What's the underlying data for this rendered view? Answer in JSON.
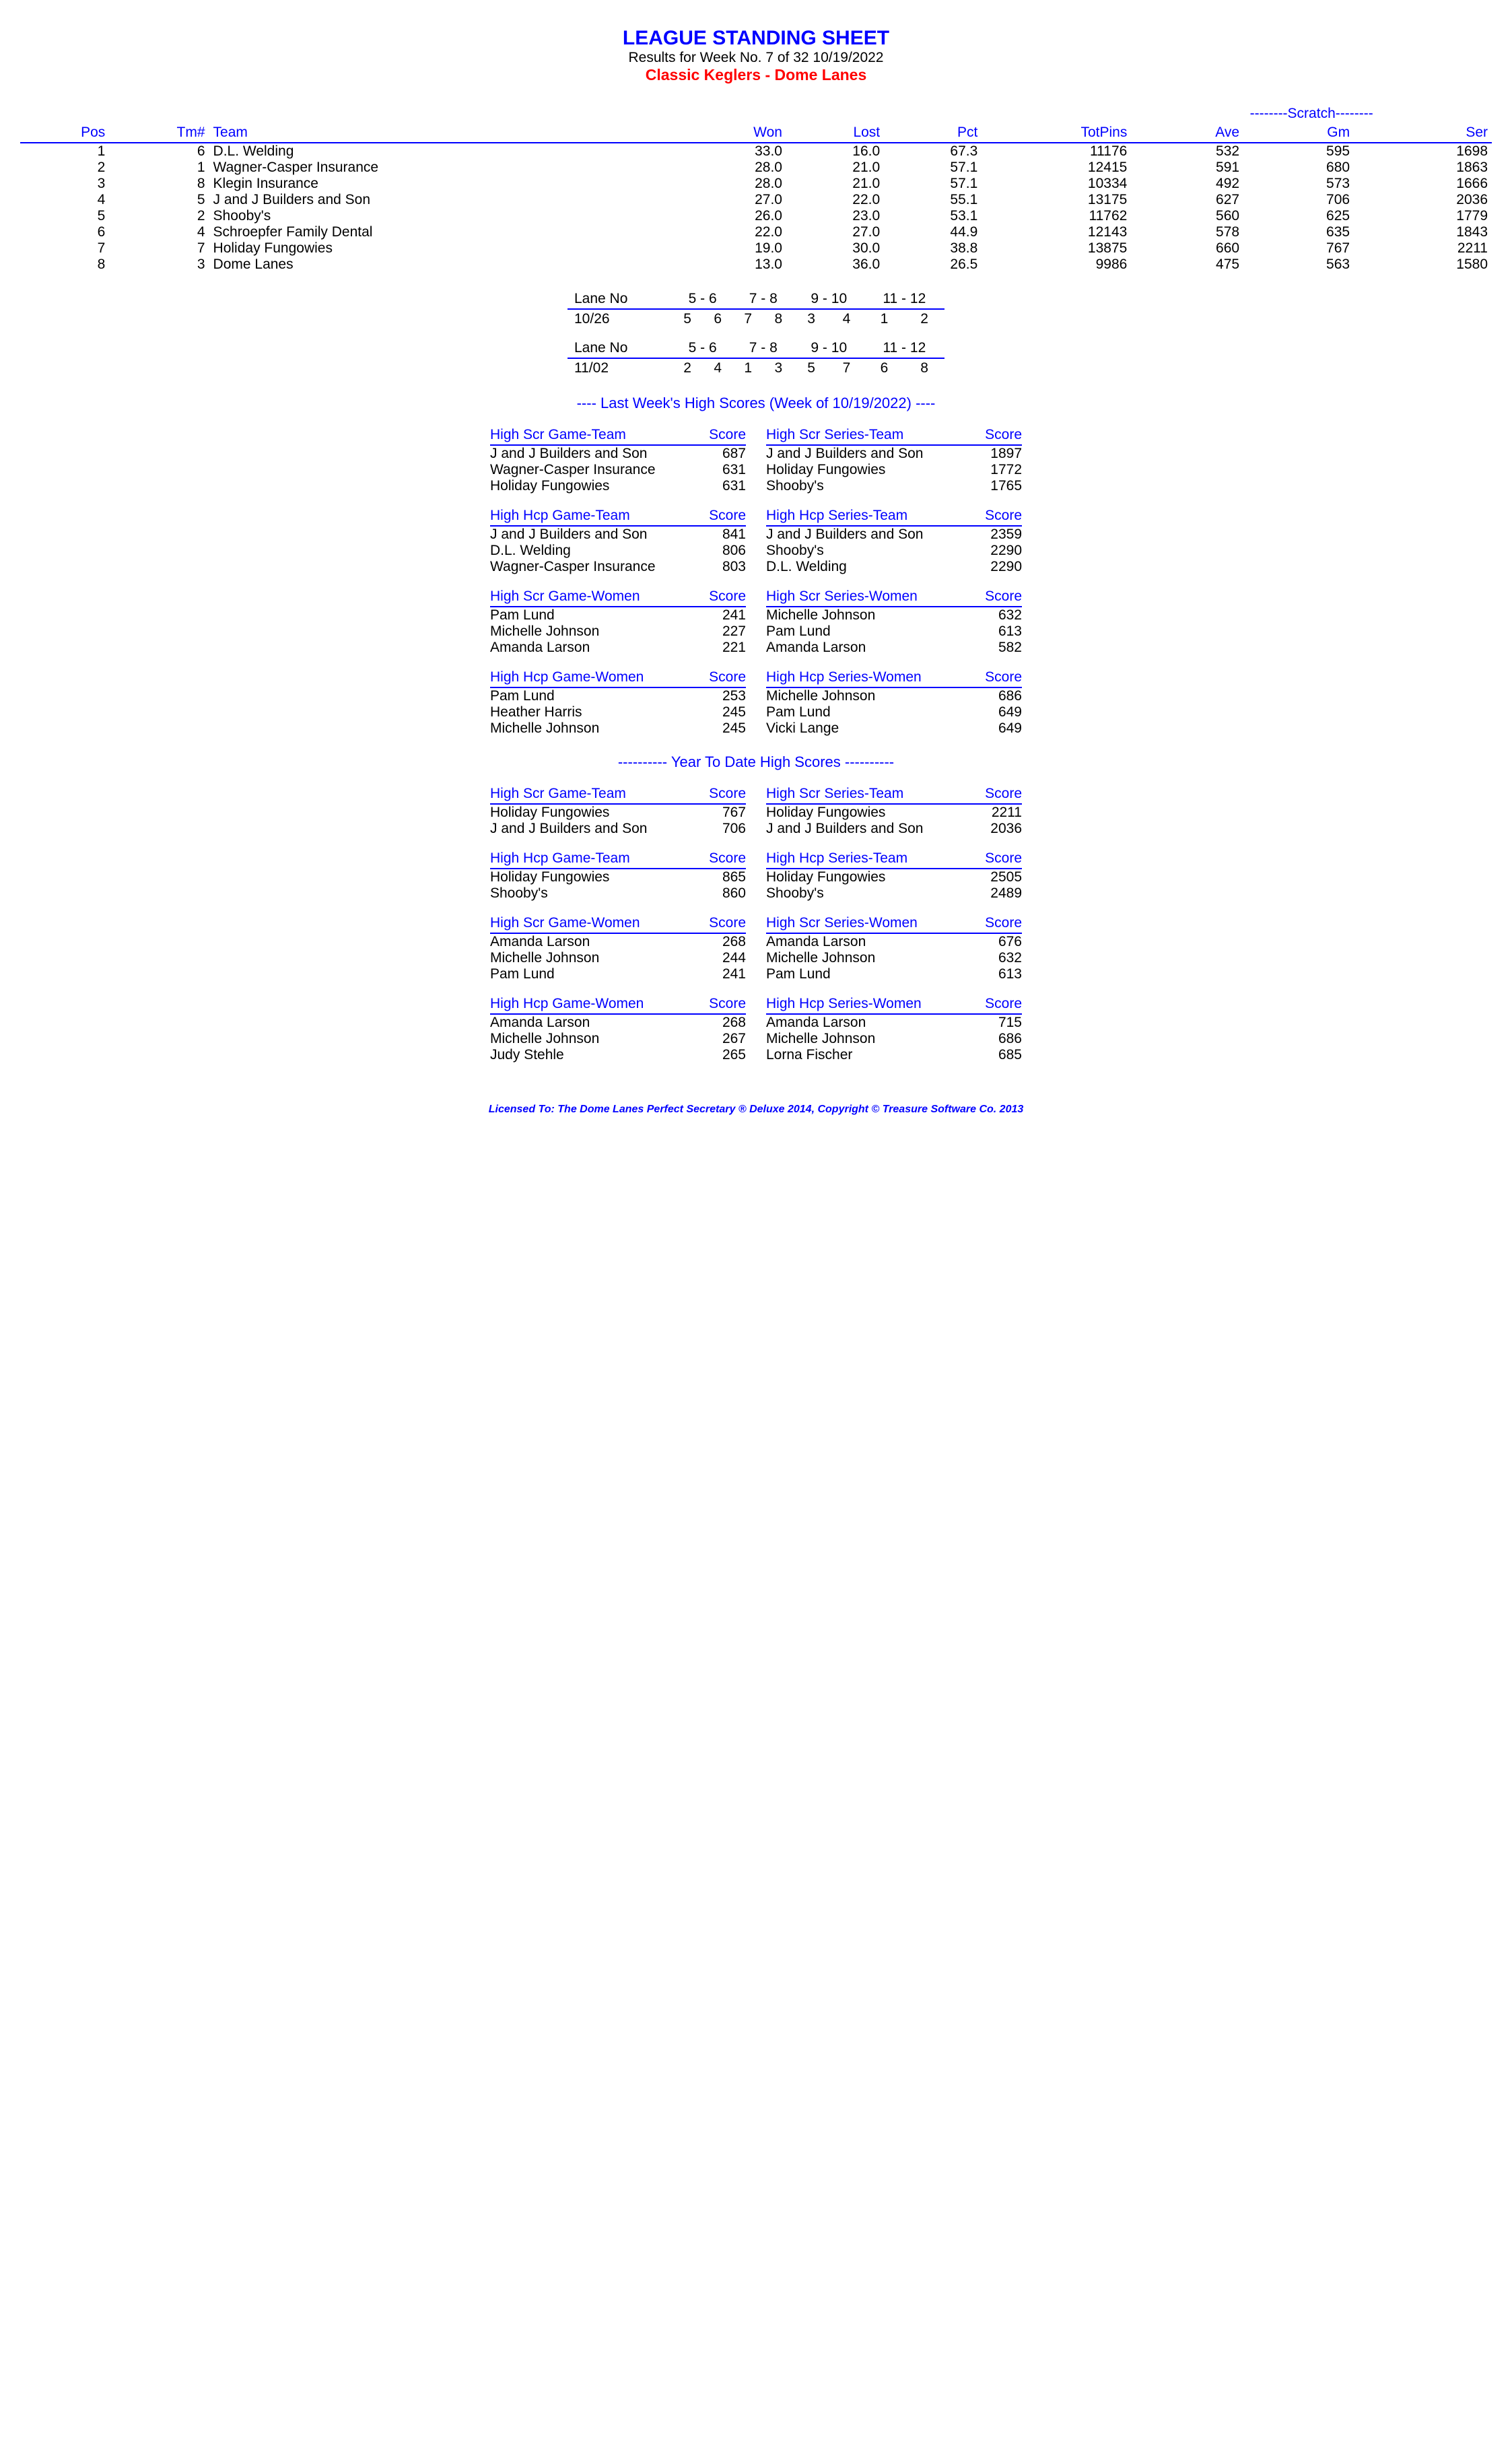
{
  "header": {
    "title": "LEAGUE STANDING SHEET",
    "subtitle": "Results for Week No. 7 of 32    10/19/2022",
    "league": "Classic Keglers - Dome Lanes"
  },
  "standings": {
    "scratch_label": "--------Scratch--------",
    "columns": [
      "Pos",
      "Tm#",
      "Team",
      "Won",
      "Lost",
      "Pct",
      "TotPins",
      "Ave",
      "Gm",
      "Ser"
    ],
    "rows": [
      [
        "1",
        "6",
        "D.L. Welding",
        "33.0",
        "16.0",
        "67.3",
        "11176",
        "532",
        "595",
        "1698"
      ],
      [
        "2",
        "1",
        "Wagner-Casper Insurance",
        "28.0",
        "21.0",
        "57.1",
        "12415",
        "591",
        "680",
        "1863"
      ],
      [
        "3",
        "8",
        "Klegin Insurance",
        "28.0",
        "21.0",
        "57.1",
        "10334",
        "492",
        "573",
        "1666"
      ],
      [
        "4",
        "5",
        "J and J Builders and Son",
        "27.0",
        "22.0",
        "55.1",
        "13175",
        "627",
        "706",
        "2036"
      ],
      [
        "5",
        "2",
        "Shooby's",
        "26.0",
        "23.0",
        "53.1",
        "11762",
        "560",
        "625",
        "1779"
      ],
      [
        "6",
        "4",
        "Schroepfer Family Dental",
        "22.0",
        "27.0",
        "44.9",
        "12143",
        "578",
        "635",
        "1843"
      ],
      [
        "7",
        "7",
        "Holiday Fungowies",
        "19.0",
        "30.0",
        "38.8",
        "13875",
        "660",
        "767",
        "2211"
      ],
      [
        "8",
        "3",
        "Dome Lanes",
        "13.0",
        "36.0",
        "26.5",
        "9986",
        "475",
        "563",
        "1580"
      ]
    ]
  },
  "lanes": [
    {
      "label": "Lane No",
      "pairs": [
        "5 - 6",
        "7 - 8",
        "9 - 10",
        "11 - 12"
      ],
      "date": "10/26",
      "vals": [
        [
          "5",
          "6"
        ],
        [
          "7",
          "8"
        ],
        [
          "3",
          "4"
        ],
        [
          "1",
          "2"
        ]
      ]
    },
    {
      "label": "Lane No",
      "pairs": [
        "5 - 6",
        "7 - 8",
        "9 - 10",
        "11 - 12"
      ],
      "date": "11/02",
      "vals": [
        [
          "2",
          "4"
        ],
        [
          "1",
          "3"
        ],
        [
          "5",
          "7"
        ],
        [
          "6",
          "8"
        ]
      ]
    }
  ],
  "last_week": {
    "title": "----  Last Week's High Scores    (Week of 10/19/2022)  ----",
    "blocks": [
      {
        "l": {
          "h": "High Scr Game-Team",
          "rows": [
            [
              "J and J Builders and Son",
              "687"
            ],
            [
              "Wagner-Casper Insurance",
              "631"
            ],
            [
              "Holiday Fungowies",
              "631"
            ]
          ]
        },
        "r": {
          "h": "High Scr Series-Team",
          "rows": [
            [
              "J and J Builders and Son",
              "1897"
            ],
            [
              "Holiday Fungowies",
              "1772"
            ],
            [
              "Shooby's",
              "1765"
            ]
          ]
        }
      },
      {
        "l": {
          "h": "High Hcp Game-Team",
          "rows": [
            [
              "J and J Builders and Son",
              "841"
            ],
            [
              "D.L. Welding",
              "806"
            ],
            [
              "Wagner-Casper Insurance",
              "803"
            ]
          ]
        },
        "r": {
          "h": "High Hcp Series-Team",
          "rows": [
            [
              "J and J Builders and Son",
              "2359"
            ],
            [
              "Shooby's",
              "2290"
            ],
            [
              "D.L. Welding",
              "2290"
            ]
          ]
        }
      },
      {
        "l": {
          "h": "High Scr Game-Women",
          "rows": [
            [
              "Pam Lund",
              "241"
            ],
            [
              "Michelle Johnson",
              "227"
            ],
            [
              "Amanda Larson",
              "221"
            ]
          ]
        },
        "r": {
          "h": "High Scr Series-Women",
          "rows": [
            [
              "Michelle Johnson",
              "632"
            ],
            [
              "Pam Lund",
              "613"
            ],
            [
              "Amanda Larson",
              "582"
            ]
          ]
        }
      },
      {
        "l": {
          "h": "High Hcp Game-Women",
          "rows": [
            [
              "Pam Lund",
              "253"
            ],
            [
              "Heather Harris",
              "245"
            ],
            [
              "Michelle Johnson",
              "245"
            ]
          ]
        },
        "r": {
          "h": "High Hcp Series-Women",
          "rows": [
            [
              "Michelle Johnson",
              "686"
            ],
            [
              "Pam Lund",
              "649"
            ],
            [
              "Vicki Lange",
              "649"
            ]
          ]
        }
      }
    ]
  },
  "ytd": {
    "title": "---------- Year To Date High Scores ----------",
    "blocks": [
      {
        "l": {
          "h": "High Scr Game-Team",
          "rows": [
            [
              "Holiday Fungowies",
              "767"
            ],
            [
              "J and J Builders and Son",
              "706"
            ]
          ]
        },
        "r": {
          "h": "High Scr Series-Team",
          "rows": [
            [
              "Holiday Fungowies",
              "2211"
            ],
            [
              "J and J Builders and Son",
              "2036"
            ]
          ]
        }
      },
      {
        "l": {
          "h": "High Hcp Game-Team",
          "rows": [
            [
              "Holiday Fungowies",
              "865"
            ],
            [
              "Shooby's",
              "860"
            ]
          ]
        },
        "r": {
          "h": "High Hcp Series-Team",
          "rows": [
            [
              "Holiday Fungowies",
              "2505"
            ],
            [
              "Shooby's",
              "2489"
            ]
          ]
        }
      },
      {
        "l": {
          "h": "High Scr Game-Women",
          "rows": [
            [
              "Amanda Larson",
              "268"
            ],
            [
              "Michelle Johnson",
              "244"
            ],
            [
              "Pam Lund",
              "241"
            ]
          ]
        },
        "r": {
          "h": "High Scr Series-Women",
          "rows": [
            [
              "Amanda Larson",
              "676"
            ],
            [
              "Michelle Johnson",
              "632"
            ],
            [
              "Pam Lund",
              "613"
            ]
          ]
        }
      },
      {
        "l": {
          "h": "High Hcp Game-Women",
          "rows": [
            [
              "Amanda Larson",
              "268"
            ],
            [
              "Michelle Johnson",
              "267"
            ],
            [
              "Judy Stehle",
              "265"
            ]
          ]
        },
        "r": {
          "h": "High Hcp Series-Women",
          "rows": [
            [
              "Amanda Larson",
              "715"
            ],
            [
              "Michelle Johnson",
              "686"
            ],
            [
              "Lorna Fischer",
              "685"
            ]
          ]
        }
      }
    ]
  },
  "footer": "Licensed To: The Dome Lanes    Perfect Secretary ® Deluxe  2014, Copyright © Treasure Software Co. 2013"
}
